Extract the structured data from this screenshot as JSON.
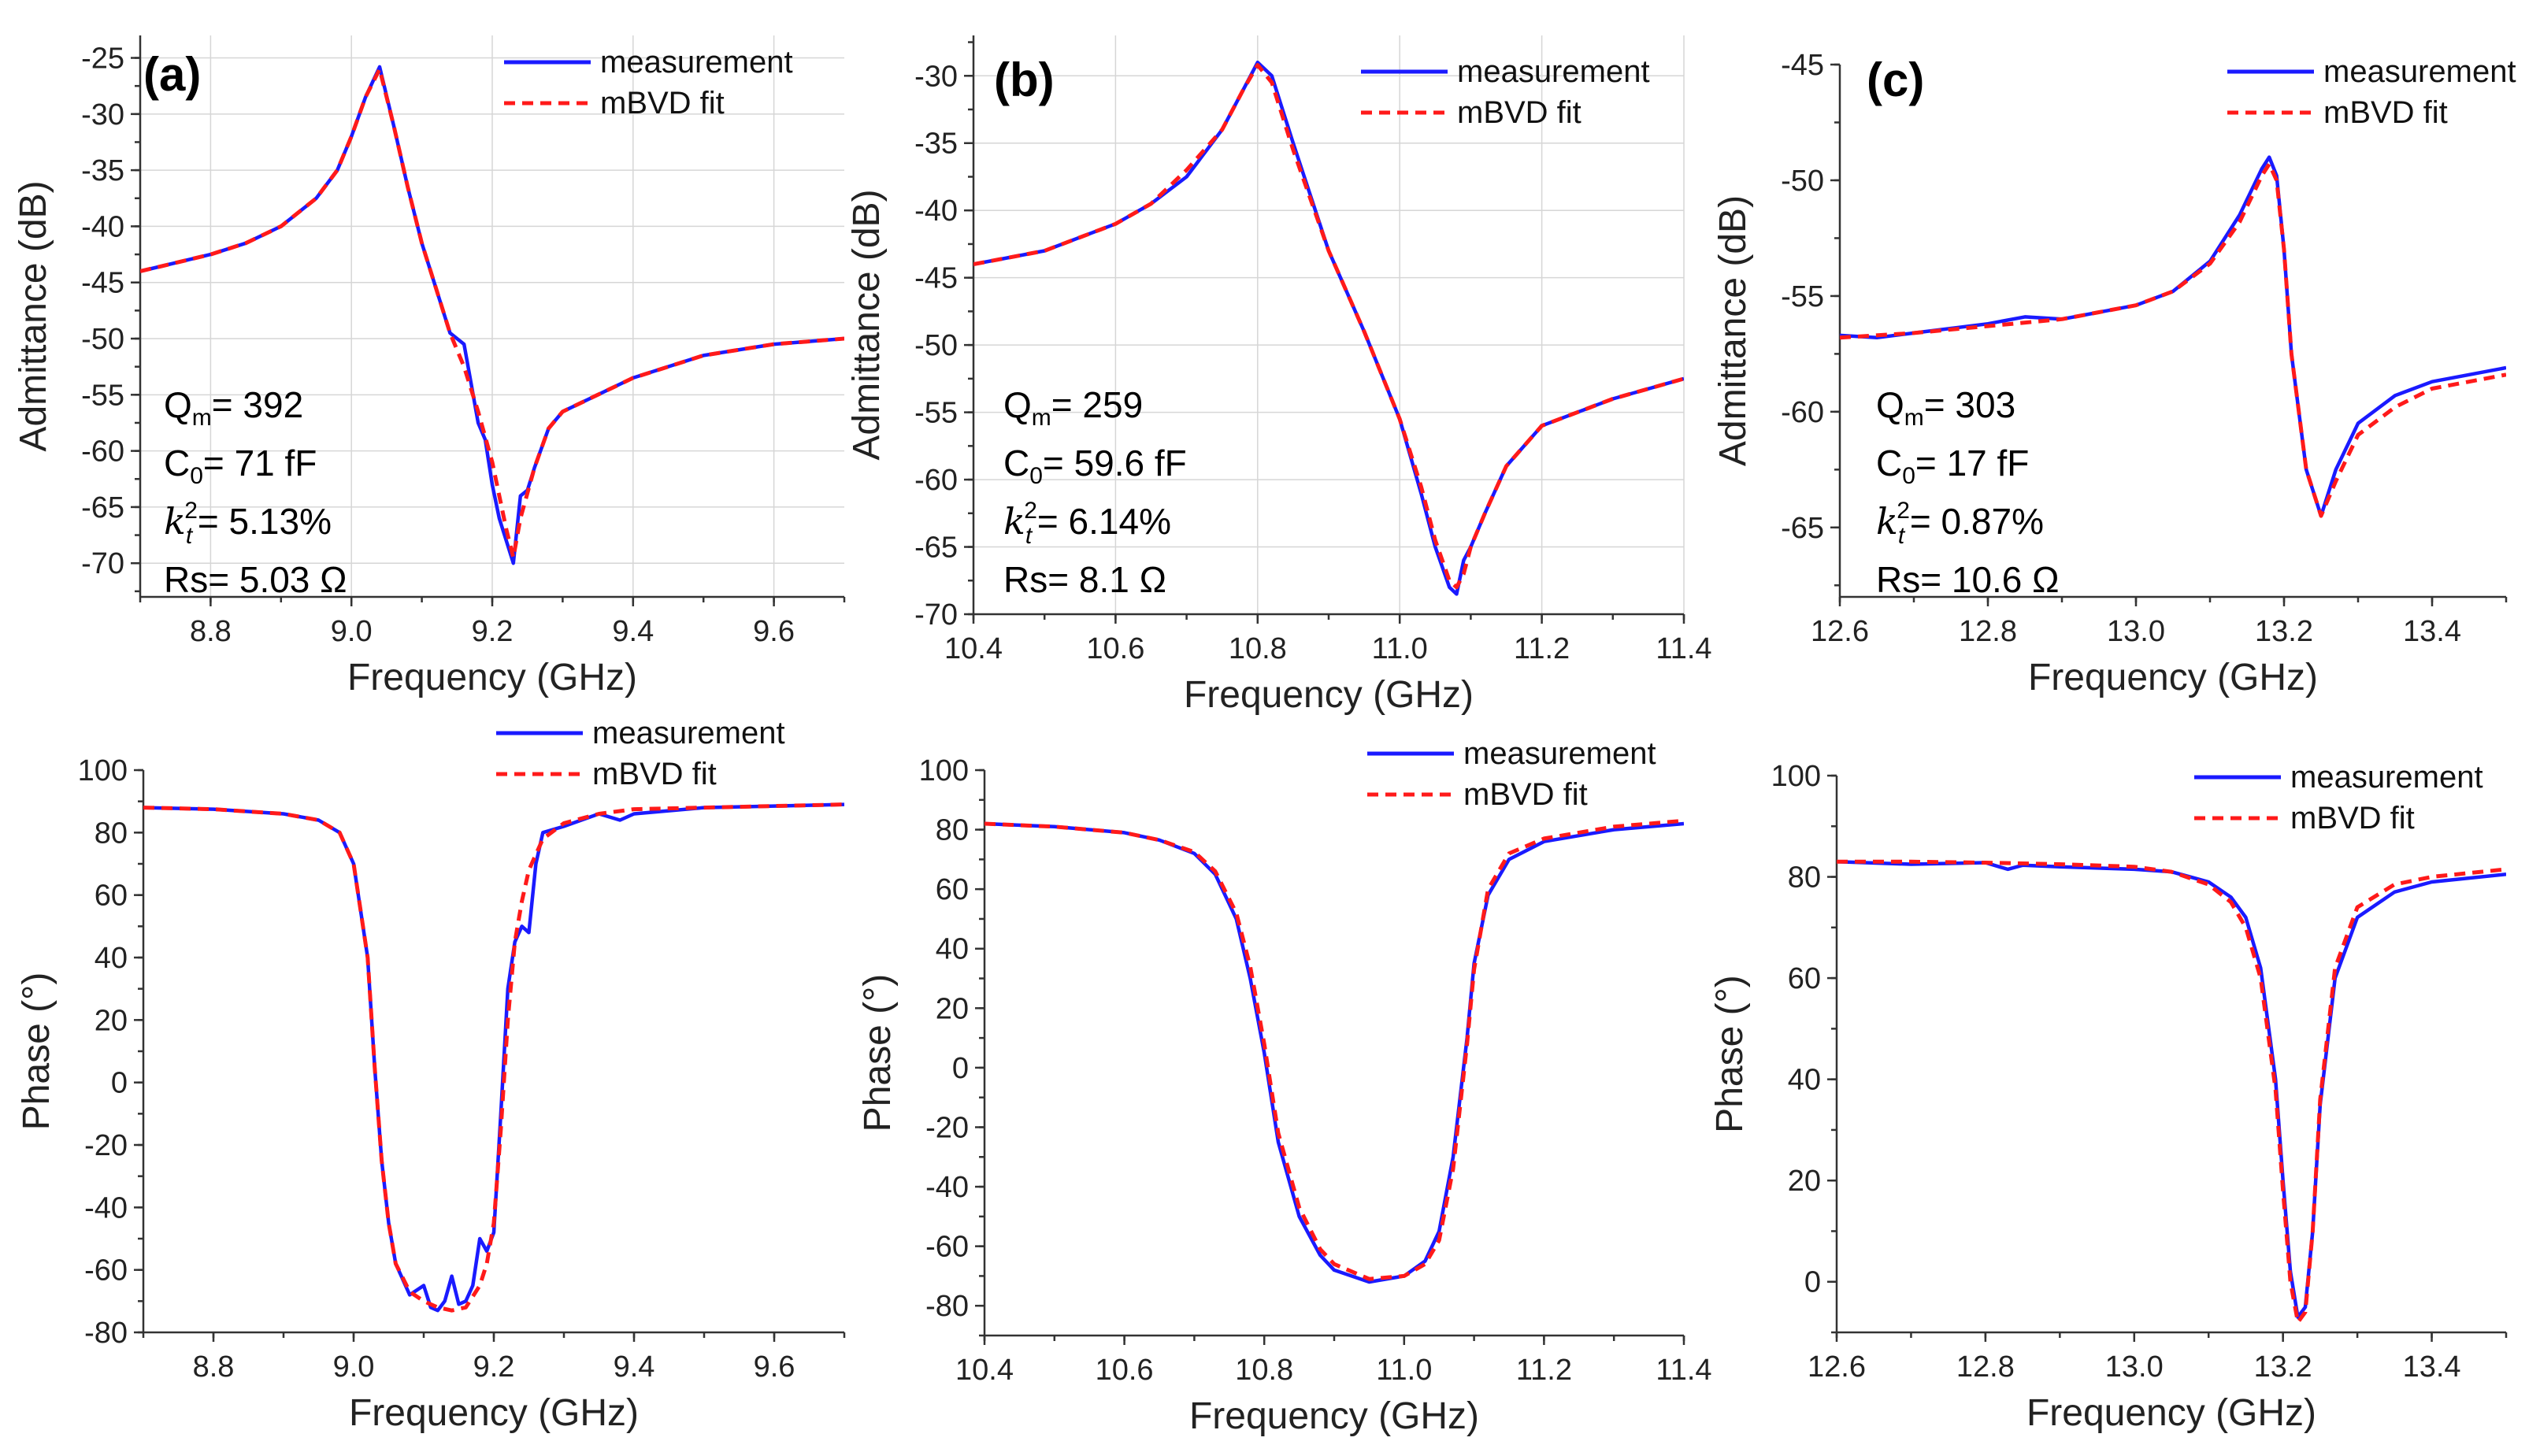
{
  "chart_data": [
    {
      "id": "a-top",
      "type": "line",
      "panel_label": "(a)",
      "xlabel": "Frequency (GHz)",
      "ylabel": "Admittance (dB)",
      "xlim": [
        8.7,
        9.7
      ],
      "ylim": [
        -73,
        -23
      ],
      "xticks": [
        8.8,
        9.0,
        9.2,
        9.4,
        9.6
      ],
      "yticks": [
        -70,
        -65,
        -60,
        -55,
        -50,
        -45,
        -40,
        -35,
        -30,
        -25
      ],
      "grid": true,
      "legend": "top-right",
      "series": [
        {
          "name": "measurement",
          "color": "#1a1aff",
          "style": "solid",
          "x": [
            8.7,
            8.8,
            8.85,
            8.9,
            8.95,
            8.98,
            9.0,
            9.02,
            9.04,
            9.06,
            9.08,
            9.1,
            9.12,
            9.14,
            9.16,
            9.17,
            9.18,
            9.19,
            9.2,
            9.21,
            9.23,
            9.24,
            9.25,
            9.26,
            9.28,
            9.3,
            9.35,
            9.4,
            9.5,
            9.6,
            9.7
          ],
          "y": [
            -44,
            -42.5,
            -41.5,
            -40,
            -37.5,
            -35,
            -32,
            -28.5,
            -25.8,
            -31,
            -36.5,
            -41.5,
            -45.5,
            -49.5,
            -50.5,
            -54,
            -57.5,
            -59,
            -63,
            -66,
            -70,
            -64,
            -63.5,
            -61.5,
            -58,
            -56.5,
            -55,
            -53.5,
            -51.5,
            -50.5,
            -50
          ]
        },
        {
          "name": "mBVD fit",
          "color": "#ff1a1a",
          "style": "dashed",
          "x": [
            8.7,
            8.8,
            8.85,
            8.9,
            8.95,
            8.98,
            9.0,
            9.02,
            9.04,
            9.06,
            9.08,
            9.1,
            9.12,
            9.14,
            9.16,
            9.18,
            9.2,
            9.22,
            9.23,
            9.24,
            9.26,
            9.28,
            9.3,
            9.35,
            9.4,
            9.5,
            9.6,
            9.7
          ],
          "y": [
            -44,
            -42.5,
            -41.5,
            -40,
            -37.5,
            -35,
            -32,
            -28.5,
            -26,
            -31,
            -36.5,
            -41.5,
            -45.5,
            -49.5,
            -52.5,
            -56.5,
            -61,
            -67,
            -69.5,
            -66,
            -61.5,
            -58,
            -56.5,
            -55,
            -53.5,
            -51.5,
            -50.5,
            -50
          ]
        }
      ],
      "annotations": {
        "q": "392",
        "c0": "71 fF",
        "kt2": "5.13%",
        "rs": "5.03 Ω"
      }
    },
    {
      "id": "b-top",
      "type": "line",
      "panel_label": "(b)",
      "xlabel": "Frequency (GHz)",
      "ylabel": "Admittance (dB)",
      "xlim": [
        10.4,
        11.4
      ],
      "ylim": [
        -70,
        -27
      ],
      "xticks": [
        10.4,
        10.6,
        10.8,
        11.0,
        11.2,
        11.4
      ],
      "yticks": [
        -70,
        -65,
        -60,
        -55,
        -50,
        -45,
        -40,
        -35,
        -30
      ],
      "grid": true,
      "legend": "top-right",
      "series": [
        {
          "name": "measurement",
          "color": "#1a1aff",
          "style": "solid",
          "x": [
            10.4,
            10.5,
            10.6,
            10.65,
            10.7,
            10.75,
            10.78,
            10.8,
            10.82,
            10.85,
            10.9,
            10.95,
            11.0,
            11.03,
            11.05,
            11.07,
            11.08,
            11.09,
            11.1,
            11.12,
            11.15,
            11.2,
            11.3,
            11.4
          ],
          "y": [
            -44,
            -43,
            -41,
            -39.5,
            -37.5,
            -34,
            -31,
            -29,
            -30,
            -35,
            -43,
            -49,
            -55.5,
            -61,
            -65,
            -68,
            -68.5,
            -66,
            -65,
            -62.5,
            -59,
            -56,
            -54,
            -52.5
          ]
        },
        {
          "name": "mBVD fit",
          "color": "#ff1a1a",
          "style": "dashed",
          "x": [
            10.4,
            10.5,
            10.6,
            10.65,
            10.7,
            10.75,
            10.78,
            10.8,
            10.82,
            10.85,
            10.9,
            10.95,
            11.0,
            11.03,
            11.05,
            11.07,
            11.08,
            11.09,
            11.1,
            11.12,
            11.15,
            11.2,
            11.3,
            11.4
          ],
          "y": [
            -44,
            -43,
            -41,
            -39.5,
            -37,
            -34,
            -31,
            -29.2,
            -30.5,
            -35.5,
            -43,
            -49,
            -55.5,
            -60.5,
            -64.5,
            -67.5,
            -68,
            -67,
            -65,
            -62.5,
            -59,
            -56,
            -54,
            -52.5
          ]
        }
      ],
      "annotations": {
        "q": "259",
        "c0": "59.6 fF",
        "kt2": "6.14%",
        "rs": "8.1 Ω"
      }
    },
    {
      "id": "c-top",
      "type": "line",
      "panel_label": "(c)",
      "xlabel": "Frequency (GHz)",
      "ylabel": "Admittance (dB)",
      "xlim": [
        12.6,
        13.5
      ],
      "ylim": [
        -68,
        -45
      ],
      "xticks": [
        12.6,
        12.8,
        13.0,
        13.2,
        13.4
      ],
      "yticks": [
        -65,
        -60,
        -55,
        -50,
        -45
      ],
      "grid": false,
      "legend": "top-right",
      "series": [
        {
          "name": "measurement",
          "color": "#1a1aff",
          "style": "solid",
          "x": [
            12.6,
            12.65,
            12.7,
            12.8,
            12.85,
            12.9,
            13.0,
            13.05,
            13.1,
            13.14,
            13.17,
            13.18,
            13.19,
            13.2,
            13.21,
            13.23,
            13.25,
            13.27,
            13.3,
            13.35,
            13.4,
            13.5
          ],
          "y": [
            -56.7,
            -56.8,
            -56.6,
            -56.2,
            -55.9,
            -56,
            -55.4,
            -54.8,
            -53.5,
            -51.5,
            -49.5,
            -49,
            -49.8,
            -53,
            -57.5,
            -62.5,
            -64.5,
            -62.5,
            -60.5,
            -59.3,
            -58.7,
            -58.1
          ]
        },
        {
          "name": "mBVD fit",
          "color": "#ff1a1a",
          "style": "dashed",
          "x": [
            12.6,
            12.7,
            12.8,
            12.9,
            13.0,
            13.05,
            13.1,
            13.14,
            13.17,
            13.18,
            13.19,
            13.2,
            13.21,
            13.23,
            13.25,
            13.27,
            13.3,
            13.35,
            13.4,
            13.5
          ],
          "y": [
            -56.8,
            -56.6,
            -56.3,
            -56,
            -55.4,
            -54.8,
            -53.6,
            -51.8,
            -49.8,
            -49.3,
            -50,
            -53,
            -57.5,
            -62.5,
            -64.5,
            -63,
            -61,
            -59.8,
            -59,
            -58.4
          ]
        }
      ],
      "annotations": {
        "q": "303",
        "c0": "17 fF",
        "kt2": "0.87%",
        "rs": "10.6 Ω"
      }
    },
    {
      "id": "a-bottom",
      "type": "line",
      "xlabel": "Frequency (GHz)",
      "ylabel": "Phase (°)",
      "xlim": [
        8.7,
        9.7
      ],
      "ylim": [
        -80,
        100
      ],
      "xticks": [
        8.8,
        9.0,
        9.2,
        9.4,
        9.6
      ],
      "yticks": [
        -80,
        -60,
        -40,
        -20,
        0,
        20,
        40,
        60,
        80,
        100
      ],
      "grid": false,
      "legend": "top-right",
      "series": [
        {
          "name": "measurement",
          "color": "#1a1aff",
          "style": "solid",
          "x": [
            8.7,
            8.8,
            8.9,
            8.95,
            8.98,
            9.0,
            9.02,
            9.03,
            9.04,
            9.05,
            9.06,
            9.08,
            9.1,
            9.11,
            9.12,
            9.13,
            9.14,
            9.15,
            9.16,
            9.17,
            9.18,
            9.19,
            9.2,
            9.21,
            9.22,
            9.23,
            9.24,
            9.25,
            9.26,
            9.27,
            9.3,
            9.35,
            9.38,
            9.4,
            9.5,
            9.6,
            9.7
          ],
          "y": [
            88,
            87.5,
            86,
            84,
            80,
            70,
            40,
            5,
            -25,
            -45,
            -58,
            -68,
            -65,
            -72,
            -73,
            -70,
            -62,
            -71,
            -70,
            -65,
            -50,
            -54,
            -48,
            -10,
            30,
            45,
            50,
            48,
            70,
            80,
            82,
            86,
            84,
            86,
            88,
            88.5,
            89
          ]
        },
        {
          "name": "mBVD fit",
          "color": "#ff1a1a",
          "style": "dashed",
          "x": [
            8.7,
            8.8,
            8.9,
            8.95,
            8.98,
            9.0,
            9.02,
            9.03,
            9.04,
            9.05,
            9.06,
            9.08,
            9.1,
            9.12,
            9.14,
            9.16,
            9.18,
            9.19,
            9.2,
            9.21,
            9.22,
            9.23,
            9.24,
            9.25,
            9.27,
            9.3,
            9.35,
            9.4,
            9.5,
            9.6,
            9.7
          ],
          "y": [
            88,
            87.5,
            86,
            84,
            80,
            70,
            40,
            5,
            -25,
            -45,
            -58,
            -67,
            -70,
            -72,
            -73,
            -72,
            -65,
            -58,
            -45,
            -15,
            20,
            45,
            58,
            68,
            78,
            83,
            86,
            87.5,
            88,
            88.5,
            89
          ]
        }
      ],
      "annotations": {}
    },
    {
      "id": "b-bottom",
      "type": "line",
      "xlabel": "Frequency (GHz)",
      "ylabel": "Phase (°)",
      "xlim": [
        10.4,
        11.4
      ],
      "ylim": [
        -90,
        100
      ],
      "xticks": [
        10.4,
        10.6,
        10.8,
        11.0,
        11.2,
        11.4
      ],
      "yticks": [
        -80,
        -60,
        -40,
        -20,
        0,
        20,
        40,
        60,
        80,
        100
      ],
      "grid": false,
      "legend": "top-right",
      "series": [
        {
          "name": "measurement",
          "color": "#1a1aff",
          "style": "solid",
          "x": [
            10.4,
            10.5,
            10.6,
            10.65,
            10.7,
            10.73,
            10.76,
            10.78,
            10.8,
            10.82,
            10.85,
            10.88,
            10.9,
            10.95,
            11.0,
            11.03,
            11.05,
            11.07,
            11.09,
            11.1,
            11.12,
            11.15,
            11.2,
            11.3,
            11.4
          ],
          "y": [
            82,
            81,
            79,
            76.5,
            72,
            65,
            50,
            30,
            5,
            -25,
            -50,
            -63,
            -68,
            -72,
            -70,
            -65,
            -55,
            -30,
            10,
            35,
            58,
            70,
            76,
            80,
            82
          ]
        },
        {
          "name": "mBVD fit",
          "color": "#ff1a1a",
          "style": "dashed",
          "x": [
            10.4,
            10.5,
            10.6,
            10.65,
            10.7,
            10.73,
            10.76,
            10.78,
            10.8,
            10.82,
            10.85,
            10.88,
            10.9,
            10.95,
            11.0,
            11.03,
            11.05,
            11.07,
            11.09,
            11.1,
            11.12,
            11.15,
            11.2,
            11.3,
            11.4
          ],
          "y": [
            82,
            81,
            79,
            76.5,
            72.5,
            66,
            52,
            34,
            8,
            -22,
            -47,
            -61,
            -66,
            -71,
            -70,
            -66,
            -58,
            -34,
            8,
            33,
            60,
            72,
            77,
            81,
            83
          ]
        }
      ],
      "annotations": {}
    },
    {
      "id": "c-bottom",
      "type": "line",
      "xlabel": "Frequency (GHz)",
      "ylabel": "Phase (°)",
      "xlim": [
        12.6,
        13.5
      ],
      "ylim": [
        -10,
        100
      ],
      "xticks": [
        12.6,
        12.8,
        13.0,
        13.2,
        13.4
      ],
      "yticks": [
        0,
        20,
        40,
        60,
        80,
        100
      ],
      "grid": false,
      "legend": "top-right",
      "series": [
        {
          "name": "measurement",
          "color": "#1a1aff",
          "style": "solid",
          "x": [
            12.6,
            12.7,
            12.8,
            12.83,
            12.85,
            12.9,
            13.0,
            13.05,
            13.1,
            13.13,
            13.15,
            13.17,
            13.19,
            13.2,
            13.21,
            13.22,
            13.23,
            13.24,
            13.25,
            13.27,
            13.3,
            13.35,
            13.4,
            13.5
          ],
          "y": [
            83,
            82.5,
            82.8,
            81.5,
            82.3,
            82,
            81.5,
            81,
            79,
            76,
            72,
            62,
            40,
            20,
            2,
            -7,
            -5,
            10,
            35,
            60,
            72,
            77,
            79,
            80.5
          ]
        },
        {
          "name": "mBVD fit",
          "color": "#ff1a1a",
          "style": "dashed",
          "x": [
            12.6,
            12.7,
            12.8,
            12.9,
            13.0,
            13.05,
            13.1,
            13.13,
            13.15,
            13.17,
            13.19,
            13.2,
            13.21,
            13.22,
            13.23,
            13.24,
            13.25,
            13.27,
            13.3,
            13.35,
            13.4,
            13.5
          ],
          "y": [
            83,
            83,
            82.8,
            82.5,
            82,
            81,
            78.5,
            75,
            70,
            60,
            38,
            18,
            0,
            -8,
            -6,
            10,
            36,
            62,
            74,
            78.5,
            80,
            81.5
          ]
        }
      ],
      "annotations": {}
    }
  ],
  "legend_labels": {
    "measurement": "measurement",
    "fit": "mBVD fit"
  },
  "annotation_labels": {
    "q_prefix": "Q",
    "q_sub": "m",
    "c0_prefix": "C",
    "c0_sub": "0",
    "k_sym": "k",
    "k_sub": "t",
    "k_sup": "2",
    "rs_prefix": "Rs= ",
    "eq": "= "
  }
}
